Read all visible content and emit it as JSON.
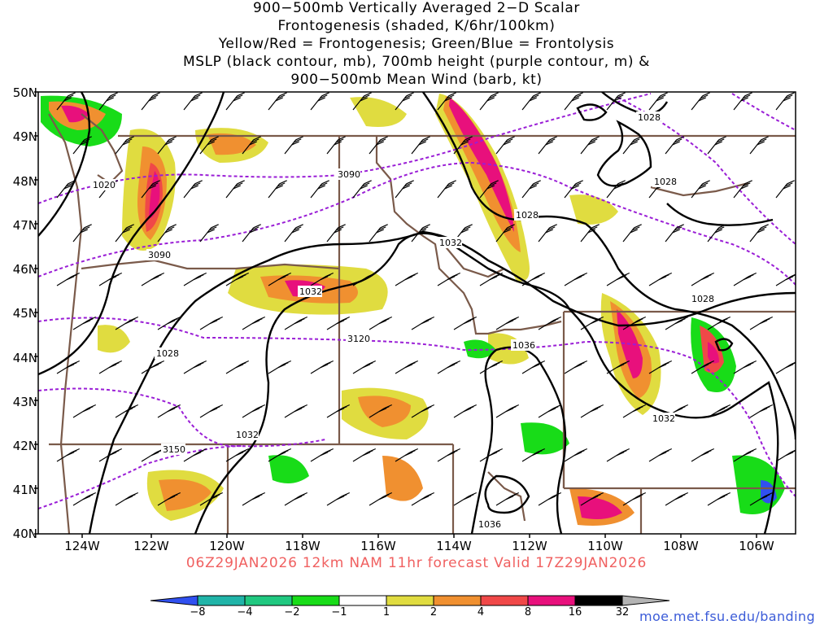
{
  "title": {
    "lines": [
      "900−500mb Vertically Averaged 2−D Scalar",
      "Frontogenesis (shaded, K/6hr/100km)",
      "Yellow/Red = Frontogenesis;  Green/Blue = Frontolysis",
      "MSLP (black contour, mb), 700mb height (purple contour, m) &",
      "900−500mb Mean Wind (barb, kt)"
    ]
  },
  "axes": {
    "lat_labels": [
      "50N",
      "49N",
      "48N",
      "47N",
      "46N",
      "45N",
      "44N",
      "43N",
      "42N",
      "41N",
      "40N"
    ],
    "lon_labels": [
      "124W",
      "122W",
      "120W",
      "118W",
      "116W",
      "114W",
      "112W",
      "110W",
      "108W",
      "106W"
    ]
  },
  "valid": "06Z29JAN2026 12km NAM 11hr forecast Valid 17Z29JAN2026",
  "colorbar": {
    "labels": [
      "−8",
      "−4",
      "−2",
      "−1",
      "1",
      "2",
      "4",
      "8",
      "16",
      "32"
    ],
    "colors": [
      "#3050f0",
      "#20b4a8",
      "#20c880",
      "#18dc18",
      "#ffffff",
      "#e0dc40",
      "#f09030",
      "#f04848",
      "#e8107c",
      "#000000",
      "#b4b4b4"
    ]
  },
  "contour_labels": {
    "mslp": [
      "1028",
      "1028",
      "1020",
      "1028",
      "1032",
      "1028",
      "1032",
      "1036",
      "1032",
      "1032",
      "1036"
    ],
    "height": [
      "3090",
      "3090",
      "3120",
      "3150"
    ]
  },
  "credit": "moe.met.fsu.edu/banding",
  "colors": {
    "mslp": "#000000",
    "height": "#9a1ed6",
    "boundary": "#7a5a4a",
    "valid_text": "#f06060",
    "credit_text": "#3b5bd8"
  }
}
